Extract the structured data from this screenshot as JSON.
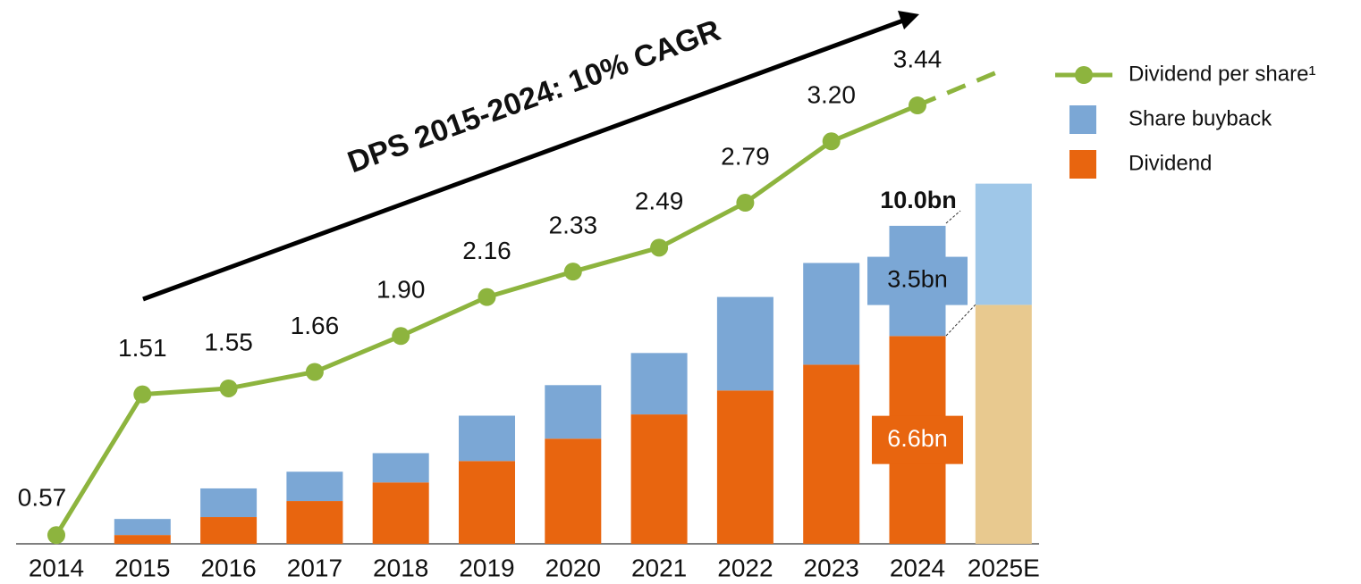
{
  "chart_data": {
    "type": "bar",
    "stacked": true,
    "categories": [
      "2014",
      "2015",
      "2016",
      "2017",
      "2018",
      "2019",
      "2020",
      "2021",
      "2022",
      "2023",
      "2024",
      "2025E"
    ],
    "series": [
      {
        "name": "Dividend",
        "color": "#e8650f",
        "estimate_color": "#e8c98f",
        "values": [
          null,
          0.28,
          0.85,
          1.36,
          1.95,
          2.63,
          3.34,
          4.11,
          4.87,
          5.69,
          6.6,
          7.59
        ],
        "value_labels": [
          null,
          null,
          null,
          null,
          null,
          null,
          null,
          null,
          null,
          null,
          "6.6bn",
          null
        ]
      },
      {
        "name": "Share buyback",
        "color": "#7ba7d5",
        "estimate_color": "#9fc7e8",
        "values": [
          null,
          0.51,
          0.91,
          0.93,
          0.93,
          1.44,
          1.7,
          1.95,
          2.97,
          3.23,
          3.5,
          3.85
        ],
        "value_labels": [
          null,
          null,
          null,
          null,
          null,
          null,
          null,
          null,
          null,
          null,
          "3.5bn",
          null
        ]
      },
      {
        "name": "Dividend per share¹",
        "type": "line",
        "axis": "y2",
        "color": "#8db43e",
        "values": [
          0.57,
          1.51,
          1.55,
          1.66,
          1.9,
          2.16,
          2.33,
          2.49,
          2.79,
          3.2,
          3.44,
          null
        ],
        "value_labels": [
          "0.57",
          "1.51",
          "1.55",
          "1.66",
          "1.90",
          "2.16",
          "2.33",
          "2.49",
          "2.79",
          "3.20",
          "3.44",
          null
        ]
      }
    ],
    "ylim": [
      0,
      11.6
    ],
    "y2lim": [
      0.5,
      3.5
    ],
    "annotations": [
      "DPS 2015-2024: 10% CAGR",
      "10.0bn"
    ],
    "legend": "right"
  }
}
